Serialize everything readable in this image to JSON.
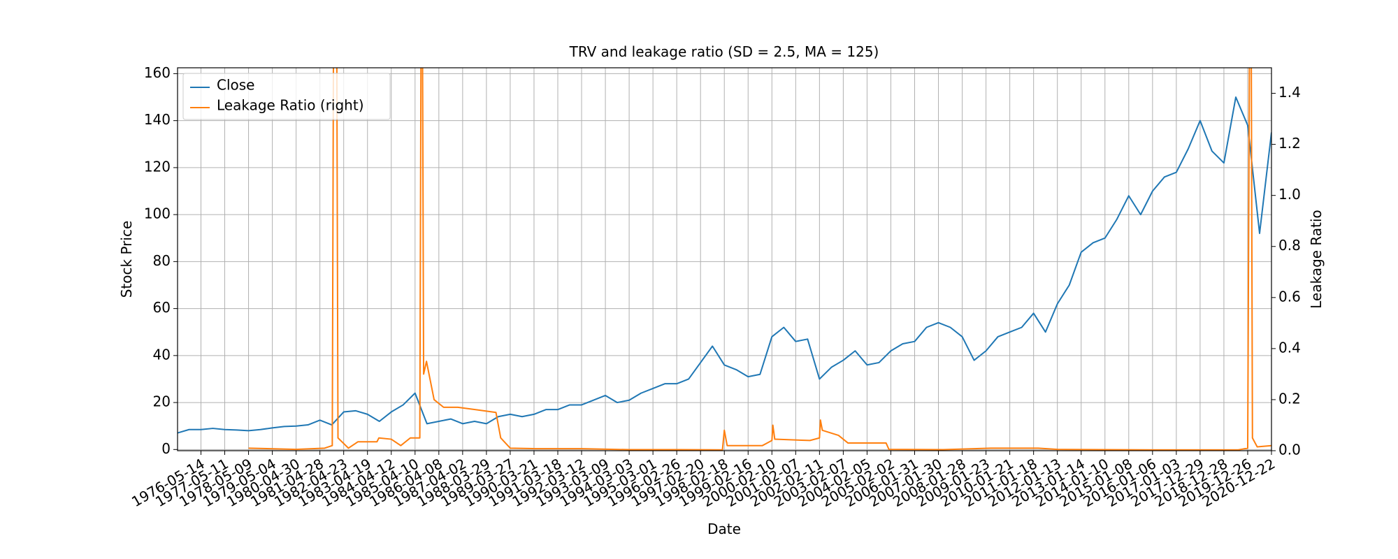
{
  "chart_data": {
    "type": "line",
    "title": "TRV and leakage ratio (SD = 2.5, MA = 125)",
    "xlabel": "Date",
    "ylabel": "Stock Price",
    "y2label": "Leakage Ratio",
    "xlim": [
      -246,
      11250
    ],
    "xticks": [
      {
        "value": 0,
        "label": "1976-05-14"
      },
      {
        "value": 250,
        "label": "1977-05-11"
      },
      {
        "value": 500,
        "label": "1978-05-09"
      },
      {
        "value": 750,
        "label": "1979-05-04"
      },
      {
        "value": 1000,
        "label": "1980-04-30"
      },
      {
        "value": 1250,
        "label": "1981-04-28"
      },
      {
        "value": 1500,
        "label": "1982-04-23"
      },
      {
        "value": 1750,
        "label": "1983-04-19"
      },
      {
        "value": 2000,
        "label": "1984-04-12"
      },
      {
        "value": 2250,
        "label": "1985-04-10"
      },
      {
        "value": 2500,
        "label": "1986-04-08"
      },
      {
        "value": 2750,
        "label": "1987-04-02"
      },
      {
        "value": 3000,
        "label": "1988-03-29"
      },
      {
        "value": 3250,
        "label": "1989-03-27"
      },
      {
        "value": 3500,
        "label": "1990-03-21"
      },
      {
        "value": 3750,
        "label": "1991-03-18"
      },
      {
        "value": 4000,
        "label": "1992-03-12"
      },
      {
        "value": 4250,
        "label": "1993-03-09"
      },
      {
        "value": 4500,
        "label": "1994-03-03"
      },
      {
        "value": 4750,
        "label": "1995-03-01"
      },
      {
        "value": 5000,
        "label": "1996-02-26"
      },
      {
        "value": 5250,
        "label": "1997-02-20"
      },
      {
        "value": 5500,
        "label": "1998-02-18"
      },
      {
        "value": 5750,
        "label": "1999-02-16"
      },
      {
        "value": 6000,
        "label": "2000-02-10"
      },
      {
        "value": 6250,
        "label": "2001-02-07"
      },
      {
        "value": 6500,
        "label": "2002-02-11"
      },
      {
        "value": 6750,
        "label": "2003-02-07"
      },
      {
        "value": 7000,
        "label": "2004-02-05"
      },
      {
        "value": 7250,
        "label": "2005-02-02"
      },
      {
        "value": 7500,
        "label": "2006-01-31"
      },
      {
        "value": 7750,
        "label": "2007-01-30"
      },
      {
        "value": 8000,
        "label": "2008-01-28"
      },
      {
        "value": 8250,
        "label": "2009-01-23"
      },
      {
        "value": 8500,
        "label": "2010-01-21"
      },
      {
        "value": 8750,
        "label": "2011-01-18"
      },
      {
        "value": 9000,
        "label": "2012-01-13"
      },
      {
        "value": 9250,
        "label": "2013-01-14"
      },
      {
        "value": 9500,
        "label": "2014-01-10"
      },
      {
        "value": 9750,
        "label": "2015-01-08"
      },
      {
        "value": 10000,
        "label": "2016-01-06"
      },
      {
        "value": 10250,
        "label": "2017-01-03"
      },
      {
        "value": 10500,
        "label": "2017-12-29"
      },
      {
        "value": 10750,
        "label": "2018-12-28"
      },
      {
        "value": 11000,
        "label": "2019-12-26"
      },
      {
        "value": 11250,
        "label": "2020-12-22"
      }
    ],
    "ylim": [
      -0.5,
      162.5
    ],
    "yticks": [
      0,
      20,
      40,
      60,
      80,
      100,
      120,
      140,
      160
    ],
    "y2lim": [
      0,
      1.5
    ],
    "y2ticks": [
      {
        "value": 0,
        "label": "0.0"
      },
      0.2,
      0.4,
      0.6,
      0.8,
      {
        "value": 1,
        "label": "1.0"
      },
      1.2,
      1.4
    ],
    "grid": true,
    "legend": "upper left",
    "series": [
      {
        "name": "Close",
        "color": "#1f77b4",
        "x": [
          -250,
          -125,
          0,
          125,
          250,
          375,
          500,
          625,
          750,
          875,
          1000,
          1125,
          1250,
          1375,
          1500,
          1625,
          1750,
          1875,
          2000,
          2125,
          2250,
          2375,
          2500,
          2625,
          2750,
          2875,
          3000,
          3125,
          3250,
          3375,
          3500,
          3625,
          3750,
          3875,
          4000,
          4125,
          4250,
          4375,
          4500,
          4625,
          4750,
          4875,
          5000,
          5125,
          5250,
          5375,
          5500,
          5625,
          5750,
          5875,
          6000,
          6125,
          6250,
          6375,
          6500,
          6625,
          6750,
          6875,
          7000,
          7125,
          7250,
          7375,
          7500,
          7625,
          7750,
          7875,
          8000,
          8125,
          8250,
          8375,
          8500,
          8625,
          8750,
          8875,
          9000,
          9125,
          9250,
          9375,
          9500,
          9625,
          9750,
          9875,
          10000,
          10125,
          10250,
          10375,
          10500,
          10625,
          10750,
          10875,
          11000,
          11125,
          11250
        ],
        "values": [
          7,
          8.5,
          8.5,
          9,
          8.5,
          8.3,
          8,
          8.5,
          9.2,
          9.8,
          10,
          10.5,
          12.5,
          10.5,
          16,
          16.5,
          15,
          12,
          16,
          19,
          24,
          11,
          12,
          13,
          11,
          12,
          11,
          14,
          15,
          14,
          15,
          17,
          17,
          19,
          19,
          21,
          23,
          20,
          21,
          24,
          26,
          28,
          28,
          30,
          37,
          44,
          36,
          34,
          31,
          32,
          48,
          52,
          46,
          47,
          30,
          35,
          38,
          42,
          36,
          37,
          42,
          45,
          46,
          52,
          54,
          52,
          48,
          38,
          42,
          48,
          50,
          52,
          58,
          50,
          62,
          70,
          84,
          88,
          90,
          98,
          108,
          100,
          110,
          116,
          118,
          128,
          140,
          127,
          122,
          150,
          138,
          92,
          135
        ]
      },
      {
        "name": "Leakage Ratio (right)",
        "color": "#ff7f0e",
        "axis": "y2",
        "x": [
          500,
          1000,
          1300,
          1380,
          1400,
          1420,
          1440,
          1550,
          1650,
          1850,
          1870,
          2000,
          2100,
          2200,
          2300,
          2320,
          2340,
          2370,
          2450,
          2550,
          2700,
          2900,
          3100,
          3150,
          3250,
          3500,
          4000,
          4500,
          5000,
          5480,
          5500,
          5530,
          5900,
          6000,
          6010,
          6030,
          6400,
          6500,
          6510,
          6530,
          6700,
          6800,
          7200,
          7230,
          7800,
          8300,
          8800,
          9000,
          10000,
          10900,
          11000,
          11030,
          11050,
          11100,
          11250
        ],
        "values": [
          0.01,
          0.005,
          0.01,
          0.02,
          2.5,
          2.5,
          0.05,
          0.01,
          0.035,
          0.035,
          0.05,
          0.045,
          0.02,
          0.05,
          0.05,
          2.5,
          0.3,
          0.35,
          0.2,
          0.17,
          0.17,
          0.16,
          0.15,
          0.05,
          0.01,
          0.008,
          0.008,
          0.004,
          0.004,
          0.003,
          0.08,
          0.02,
          0.02,
          0.04,
          0.1,
          0.045,
          0.04,
          0.05,
          0.12,
          0.08,
          0.06,
          0.03,
          0.03,
          0.005,
          0.004,
          0.01,
          0.01,
          0.005,
          0.003,
          0.003,
          0.01,
          2.5,
          0.05,
          0.015,
          0.02
        ]
      }
    ]
  }
}
